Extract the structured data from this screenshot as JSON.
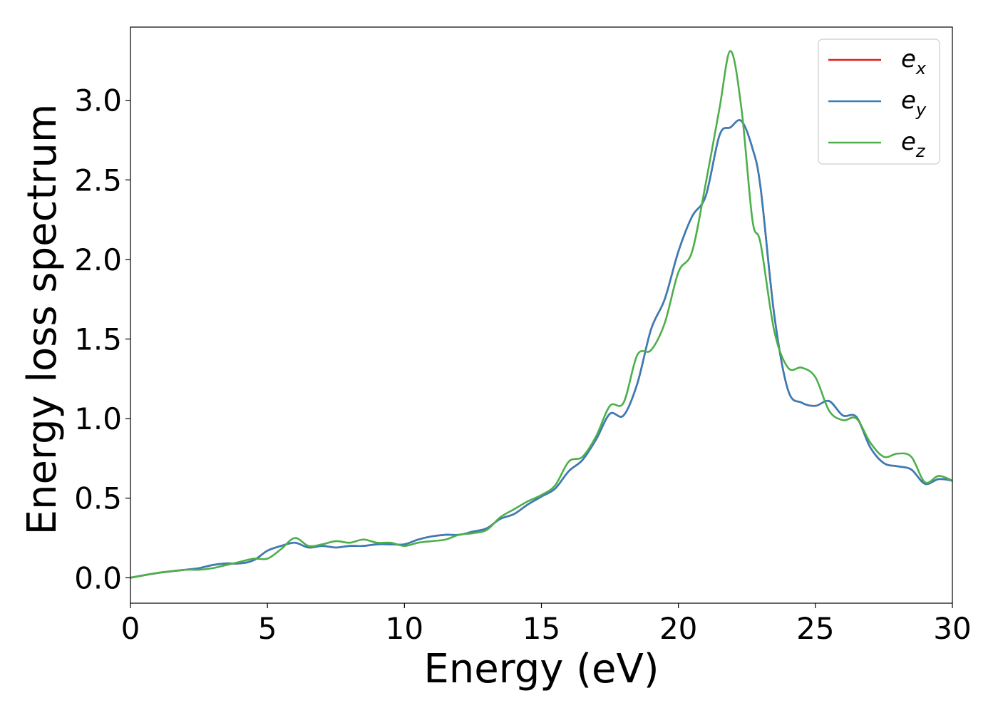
{
  "chart_data": {
    "type": "line",
    "title": "",
    "xlabel": "Energy (eV)",
    "ylabel": "Energy loss spectrum",
    "xlim": [
      0,
      30
    ],
    "ylim": [
      -0.16,
      3.46
    ],
    "xticks": [
      0,
      5,
      10,
      15,
      20,
      25,
      30
    ],
    "xtick_labels": [
      "0",
      "5",
      "10",
      "15",
      "20",
      "25",
      "30"
    ],
    "yticks": [
      0.0,
      0.5,
      1.0,
      1.5,
      2.0,
      2.5,
      3.0
    ],
    "ytick_labels": [
      "0.0",
      "0.5",
      "1.0",
      "1.5",
      "2.0",
      "2.5",
      "3.0"
    ],
    "grid": false,
    "legend_position": "top-right",
    "legend": [
      {
        "base": "e",
        "sub": "x",
        "color": "#e41a1c"
      },
      {
        "base": "e",
        "sub": "y",
        "color": "#377eb8"
      },
      {
        "base": "e",
        "sub": "z",
        "color": "#4daf4a"
      }
    ],
    "x": [
      0,
      1,
      2,
      2.5,
      3,
      3.5,
      4,
      4.5,
      5,
      5.5,
      6,
      6.5,
      7,
      7.5,
      8,
      8.5,
      9,
      9.5,
      10,
      10.5,
      11,
      11.5,
      12,
      12.5,
      13,
      13.5,
      14,
      14.5,
      15,
      15.5,
      16,
      16.5,
      17,
      17.5,
      18,
      18.5,
      19,
      19.5,
      20,
      20.5,
      21,
      21.5,
      21.9,
      22.3,
      22.7,
      23,
      23.5,
      24,
      24.5,
      25,
      25.5,
      26,
      26.5,
      27,
      27.5,
      28,
      28.5,
      29,
      29.5,
      30
    ],
    "series": [
      {
        "name": "e_x",
        "color": "#e41a1c",
        "values": [
          0.0,
          0.03,
          0.05,
          0.06,
          0.08,
          0.09,
          0.09,
          0.11,
          0.17,
          0.2,
          0.22,
          0.19,
          0.2,
          0.19,
          0.2,
          0.2,
          0.21,
          0.21,
          0.21,
          0.24,
          0.26,
          0.27,
          0.27,
          0.29,
          0.31,
          0.37,
          0.4,
          0.46,
          0.51,
          0.56,
          0.67,
          0.74,
          0.87,
          1.03,
          1.02,
          1.22,
          1.56,
          1.75,
          2.05,
          2.27,
          2.4,
          2.78,
          2.83,
          2.87,
          2.7,
          2.45,
          1.65,
          1.18,
          1.1,
          1.08,
          1.11,
          1.02,
          1.01,
          0.82,
          0.72,
          0.7,
          0.68,
          0.59,
          0.62,
          0.61
        ]
      },
      {
        "name": "e_y",
        "color": "#377eb8",
        "values": [
          0.0,
          0.03,
          0.05,
          0.06,
          0.08,
          0.09,
          0.09,
          0.11,
          0.17,
          0.2,
          0.22,
          0.19,
          0.2,
          0.19,
          0.2,
          0.2,
          0.21,
          0.21,
          0.21,
          0.24,
          0.26,
          0.27,
          0.27,
          0.29,
          0.31,
          0.37,
          0.4,
          0.46,
          0.51,
          0.56,
          0.67,
          0.74,
          0.87,
          1.03,
          1.02,
          1.22,
          1.56,
          1.75,
          2.05,
          2.27,
          2.4,
          2.78,
          2.83,
          2.87,
          2.7,
          2.45,
          1.65,
          1.18,
          1.1,
          1.08,
          1.11,
          1.02,
          1.01,
          0.82,
          0.72,
          0.7,
          0.68,
          0.59,
          0.62,
          0.61
        ]
      },
      {
        "name": "e_z",
        "color": "#4daf4a",
        "values": [
          0.0,
          0.03,
          0.05,
          0.05,
          0.06,
          0.08,
          0.1,
          0.12,
          0.12,
          0.18,
          0.25,
          0.2,
          0.21,
          0.23,
          0.22,
          0.24,
          0.22,
          0.22,
          0.2,
          0.22,
          0.23,
          0.24,
          0.27,
          0.28,
          0.3,
          0.38,
          0.43,
          0.48,
          0.52,
          0.58,
          0.73,
          0.76,
          0.89,
          1.08,
          1.1,
          1.4,
          1.43,
          1.6,
          1.92,
          2.05,
          2.48,
          2.95,
          3.31,
          2.95,
          2.25,
          2.1,
          1.55,
          1.32,
          1.32,
          1.26,
          1.05,
          0.99,
          1.0,
          0.85,
          0.76,
          0.78,
          0.76,
          0.6,
          0.64,
          0.61
        ]
      }
    ]
  }
}
